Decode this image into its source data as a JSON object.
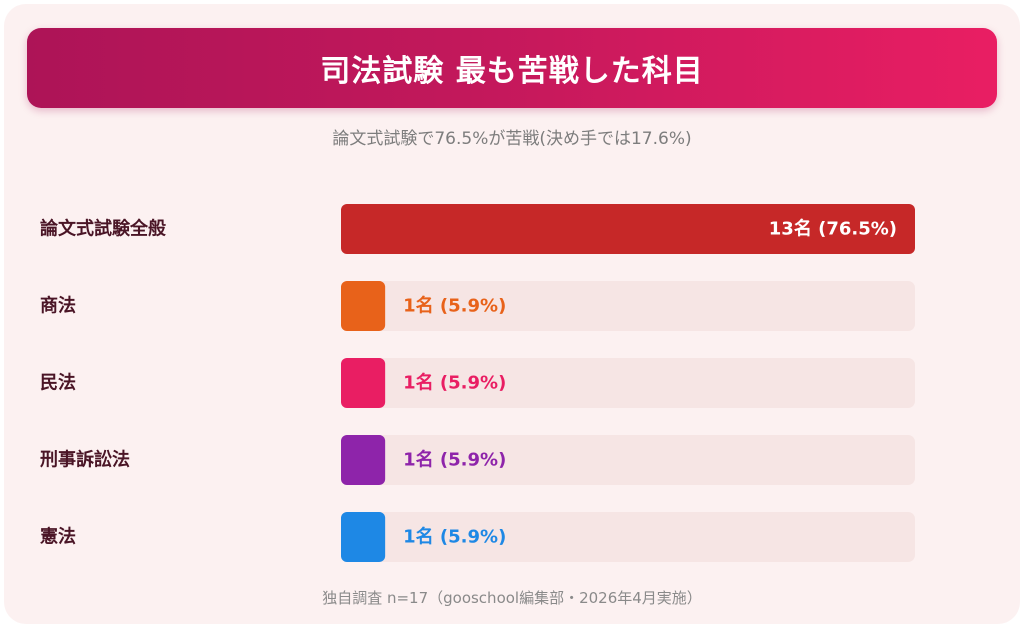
{
  "header": {
    "title": "司法試験 最も苦戦した科目",
    "subtitle": "論文式試験で76.5%が苦戦(決め手では17.6%)"
  },
  "footer": {
    "note": "独自調査 n=17（gooschool編集部・2026年4月実施）"
  },
  "colors": {
    "title_gradient_start": "#ad1457",
    "title_gradient_end": "#e91e63",
    "card_background": "#fcf1f1",
    "track": "#f6e5e4",
    "category_text": "#4a1526"
  },
  "chart_data": {
    "type": "bar",
    "orientation": "horizontal",
    "title": "司法試験 最も苦戦した科目",
    "subtitle": "論文式試験で76.5%が苦戦(決め手では17.6%)",
    "categories": [
      "論文式試験全般",
      "商法",
      "民法",
      "刑事訴訟法",
      "憲法"
    ],
    "values": [
      13,
      1,
      1,
      1,
      1
    ],
    "percents": [
      76.5,
      5.9,
      5.9,
      5.9,
      5.9
    ],
    "data_labels": [
      "13名 (76.5%)",
      "1名 (5.9%)",
      "1名 (5.9%)",
      "1名 (5.9%)",
      "1名 (5.9%)"
    ],
    "bar_colors": [
      "#c62828",
      "#e8621a",
      "#e91e63",
      "#8e24aa",
      "#1e88e5"
    ],
    "label_colors": [
      "#ffffff",
      "#e8621a",
      "#e91e63",
      "#8e24aa",
      "#1e88e5"
    ],
    "xlim": [
      0,
      13
    ],
    "grid": false,
    "legend": "none"
  }
}
